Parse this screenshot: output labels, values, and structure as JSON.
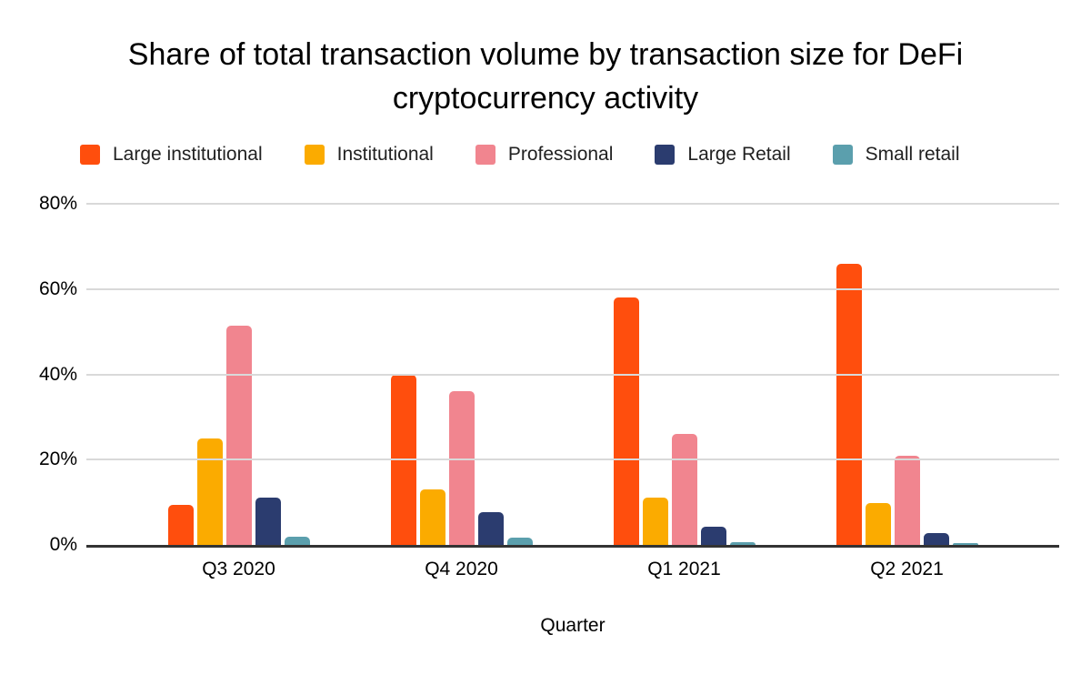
{
  "chart_data": {
    "type": "bar",
    "title": "Share of total transaction volume by transaction size for DeFi cryptocurrency activity",
    "xlabel": "Quarter",
    "ylabel": "",
    "categories": [
      "Q3 2020",
      "Q4 2020",
      "Q1 2021",
      "Q2 2021"
    ],
    "series": [
      {
        "name": "Large institutional",
        "color": "#FF4E0D",
        "values": [
          9.4,
          40,
          58,
          66
        ]
      },
      {
        "name": "Institutional",
        "color": "#FBAB00",
        "values": [
          25,
          13,
          11,
          9.8
        ]
      },
      {
        "name": "Professional",
        "color": "#F1858F",
        "values": [
          51.5,
          36,
          26,
          21
        ]
      },
      {
        "name": "Large Retail",
        "color": "#2B3C6F",
        "values": [
          11,
          7.6,
          4.3,
          2.7
        ]
      },
      {
        "name": "Small retail",
        "color": "#5B9FAD",
        "values": [
          2,
          1.8,
          0.6,
          0.5
        ]
      }
    ],
    "ylim": [
      0,
      80
    ],
    "ytick_step": 20,
    "ytick_labels": [
      "0%",
      "20%",
      "40%",
      "60%",
      "80%"
    ],
    "grid": true,
    "legend_position": "top"
  },
  "theme": {
    "background": "#FFFFFF",
    "title_color": "#000000",
    "legend_text_color": "#212121",
    "tick_text_color": "#000000",
    "grid_color": "#D9D9D9",
    "axis_color": "#333333"
  }
}
